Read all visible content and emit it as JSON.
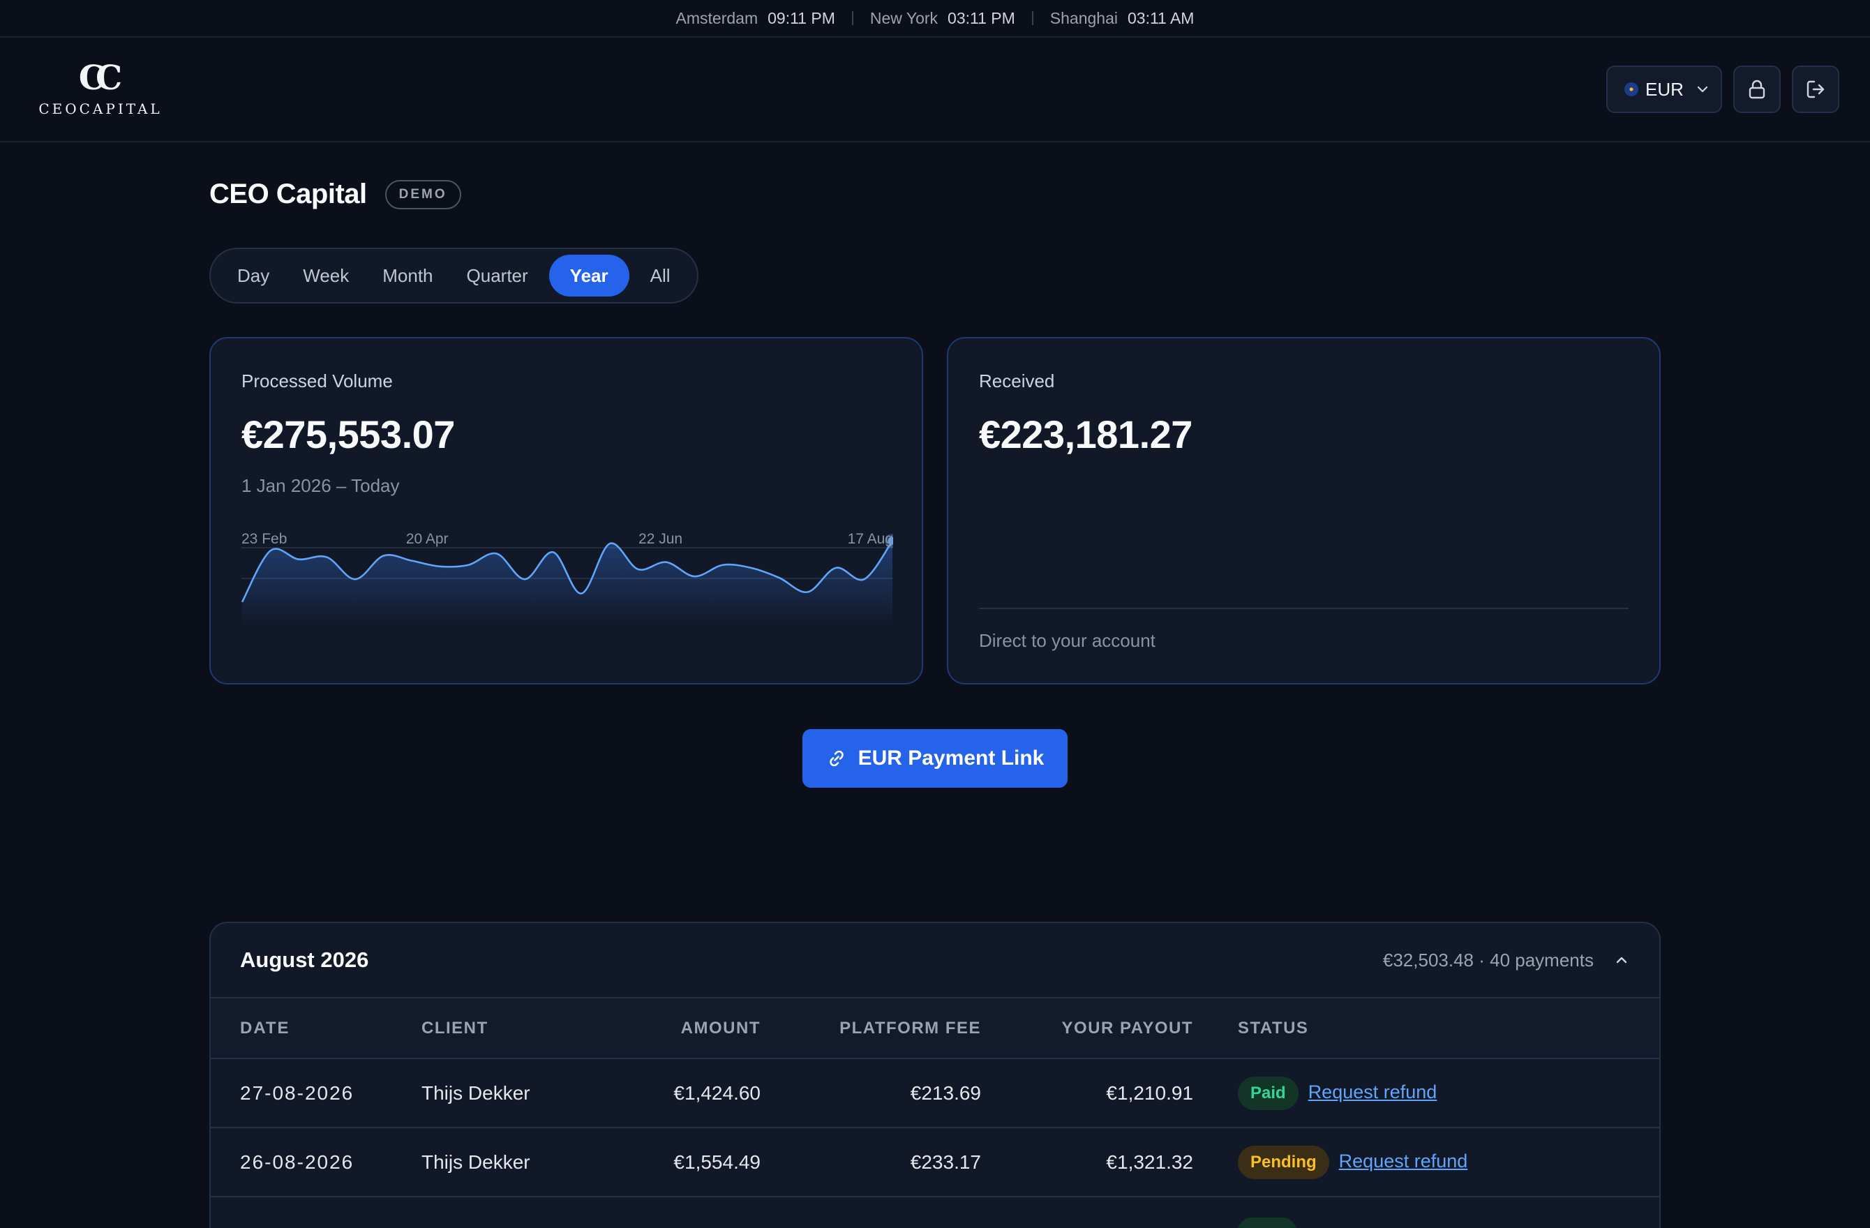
{
  "clocks": [
    {
      "city": "Amsterdam",
      "time": "09:11 PM"
    },
    {
      "city": "New York",
      "time": "03:11 PM"
    },
    {
      "city": "Shanghai",
      "time": "03:11 AM"
    }
  ],
  "brand": {
    "mark": "CC",
    "name": "CEOCAPITAL"
  },
  "header": {
    "currency": "EUR"
  },
  "page": {
    "title": "CEO Capital",
    "badge": "DEMO"
  },
  "tabs": [
    {
      "label": "Day",
      "active": false
    },
    {
      "label": "Week",
      "active": false
    },
    {
      "label": "Month",
      "active": false
    },
    {
      "label": "Quarter",
      "active": false
    },
    {
      "label": "Year",
      "active": true
    },
    {
      "label": "All",
      "active": false
    }
  ],
  "cards": {
    "processed": {
      "label": "Processed Volume",
      "amount": "€275,553.07",
      "period": "1 Jan 2026 – Today"
    },
    "received": {
      "label": "Received",
      "amount": "€223,181.27",
      "footer": "Direct to your account"
    }
  },
  "chart_data": {
    "type": "area",
    "x_tick_labels": [
      "23 Feb",
      "20 Apr",
      "22 Jun",
      "17 Aug"
    ],
    "values": [
      0.1,
      0.82,
      0.7,
      0.73,
      0.42,
      0.75,
      0.68,
      0.6,
      0.62,
      0.78,
      0.42,
      0.8,
      0.22,
      0.92,
      0.56,
      0.66,
      0.46,
      0.62,
      0.58,
      0.44,
      0.24,
      0.58,
      0.42,
      0.96
    ],
    "grid": true,
    "accent": "#60a5fa"
  },
  "cta": {
    "label": "EUR Payment Link"
  },
  "month": {
    "title": "August 2026",
    "summary": "€32,503.48 · 40 payments",
    "columns": [
      "DATE",
      "CLIENT",
      "AMOUNT",
      "PLATFORM FEE",
      "YOUR PAYOUT",
      "STATUS"
    ],
    "rows": [
      {
        "date": "27-08-2026",
        "client": "Thijs Dekker",
        "amount": "€1,424.60",
        "fee": "€213.69",
        "payout": "€1,210.91",
        "status": "Paid",
        "action": "Request refund"
      },
      {
        "date": "26-08-2026",
        "client": "Thijs Dekker",
        "amount": "€1,554.49",
        "fee": "€233.17",
        "payout": "€1,321.32",
        "status": "Pending",
        "action": "Request refund"
      }
    ]
  },
  "colors": {
    "accent": "#2563eb",
    "paid": "#34d399",
    "pending": "#fbbf24",
    "link": "#60a5fa"
  }
}
